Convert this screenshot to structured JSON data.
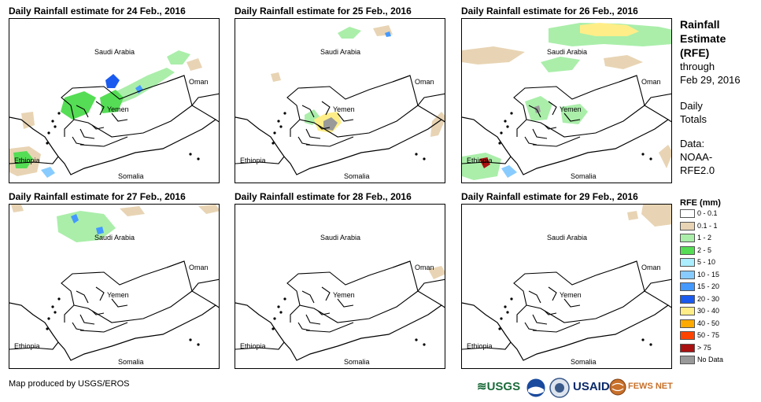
{
  "panels": [
    {
      "title": "Daily Rainfall estimate for 24 Feb., 2016",
      "rain": [
        {
          "c": 2,
          "pts": [
            [
              130,
              95
            ],
            [
              150,
              85
            ],
            [
              175,
              72
            ],
            [
              200,
              62
            ],
            [
              210,
              68
            ],
            [
              185,
              85
            ],
            [
              160,
              100
            ],
            [
              135,
              110
            ]
          ]
        },
        {
          "c": 2,
          "pts": [
            [
              200,
              48
            ],
            [
              215,
              40
            ],
            [
              230,
              45
            ],
            [
              220,
              58
            ],
            [
              205,
              58
            ]
          ]
        },
        {
          "c": 3,
          "pts": [
            [
              70,
              100
            ],
            [
              95,
              92
            ],
            [
              110,
              100
            ],
            [
              100,
              120
            ],
            [
              80,
              128
            ],
            [
              65,
              118
            ]
          ]
        },
        {
          "c": 3,
          "pts": [
            [
              115,
              100
            ],
            [
              135,
              90
            ],
            [
              145,
              100
            ],
            [
              138,
              118
            ],
            [
              118,
              120
            ]
          ]
        },
        {
          "c": 7,
          "pts": [
            [
              122,
              78
            ],
            [
              132,
              70
            ],
            [
              140,
              78
            ],
            [
              134,
              88
            ],
            [
              124,
              88
            ]
          ]
        },
        {
          "c": 6,
          "pts": [
            [
              160,
              88
            ],
            [
              166,
              84
            ],
            [
              170,
              90
            ],
            [
              164,
              95
            ]
          ]
        },
        {
          "c": 1,
          "pts": [
            [
              0,
              165
            ],
            [
              25,
              162
            ],
            [
              40,
              172
            ],
            [
              35,
              195
            ],
            [
              10,
              200
            ],
            [
              0,
              195
            ]
          ]
        },
        {
          "c": 3,
          "pts": [
            [
              5,
              170
            ],
            [
              22,
              168
            ],
            [
              30,
              178
            ],
            [
              22,
              190
            ],
            [
              8,
              190
            ]
          ]
        },
        {
          "c": 5,
          "pts": [
            [
              40,
              192
            ],
            [
              52,
              188
            ],
            [
              58,
              196
            ],
            [
              48,
              202
            ]
          ]
        },
        {
          "c": 1,
          "pts": [
            [
              225,
              55
            ],
            [
              240,
              50
            ],
            [
              245,
              62
            ],
            [
              230,
              66
            ]
          ]
        },
        {
          "c": 1,
          "pts": [
            [
              15,
              120
            ],
            [
              30,
              118
            ],
            [
              32,
              135
            ],
            [
              18,
              140
            ]
          ]
        }
      ]
    },
    {
      "title": "Daily Rainfall estimate for 25 Feb., 2016",
      "rain": [
        {
          "c": 2,
          "pts": [
            [
              130,
              18
            ],
            [
              145,
              10
            ],
            [
              160,
              15
            ],
            [
              150,
              25
            ],
            [
              135,
              25
            ]
          ]
        },
        {
          "c": 1,
          "pts": [
            [
              175,
              12
            ],
            [
              195,
              8
            ],
            [
              200,
              20
            ],
            [
              180,
              22
            ]
          ]
        },
        {
          "c": 6,
          "pts": [
            [
              190,
              18
            ],
            [
              196,
              16
            ],
            [
              198,
              22
            ],
            [
              192,
              23
            ]
          ]
        },
        {
          "c": 2,
          "pts": [
            [
              88,
              122
            ],
            [
              100,
              115
            ],
            [
              108,
              125
            ],
            [
              98,
              135
            ],
            [
              88,
              132
            ]
          ]
        },
        {
          "c": 8,
          "pts": [
            [
              100,
              128
            ],
            [
              115,
              120
            ],
            [
              130,
              118
            ],
            [
              135,
              132
            ],
            [
              122,
              145
            ],
            [
              105,
              142
            ]
          ]
        },
        {
          "c": 12,
          "pts": [
            [
              112,
              130
            ],
            [
              122,
              125
            ],
            [
              130,
              132
            ],
            [
              124,
              142
            ],
            [
              112,
              140
            ]
          ]
        },
        {
          "c": 1,
          "pts": [
            [
              250,
              130
            ],
            [
              262,
              118
            ],
            [
              268,
              125
            ],
            [
              258,
              148
            ],
            [
              248,
              150
            ]
          ]
        },
        {
          "c": 1,
          "pts": [
            [
              45,
              70
            ],
            [
              55,
              68
            ],
            [
              58,
              78
            ],
            [
              48,
              80
            ]
          ]
        }
      ]
    },
    {
      "title": "Daily Rainfall estimate for 26 Feb., 2016",
      "rain": [
        {
          "c": 2,
          "pts": [
            [
              110,
              12
            ],
            [
              150,
              5
            ],
            [
              200,
              6
            ],
            [
              250,
              10
            ],
            [
              268,
              14
            ],
            [
              268,
              32
            ],
            [
              230,
              35
            ],
            [
              180,
              32
            ],
            [
              140,
              35
            ],
            [
              110,
              30
            ]
          ]
        },
        {
          "c": 8,
          "pts": [
            [
              150,
              8
            ],
            [
              175,
              5
            ],
            [
              210,
              8
            ],
            [
              225,
              16
            ],
            [
              210,
              22
            ],
            [
              170,
              22
            ],
            [
              150,
              18
            ]
          ]
        },
        {
          "c": 2,
          "pts": [
            [
              100,
              55
            ],
            [
              125,
              48
            ],
            [
              150,
              52
            ],
            [
              140,
              65
            ],
            [
              110,
              68
            ]
          ]
        },
        {
          "c": 1,
          "pts": [
            [
              0,
              40
            ],
            [
              40,
              35
            ],
            [
              80,
              42
            ],
            [
              60,
              55
            ],
            [
              20,
              58
            ],
            [
              0,
              55
            ]
          ]
        },
        {
          "c": 1,
          "pts": [
            [
              180,
              50
            ],
            [
              210,
              46
            ],
            [
              230,
              55
            ],
            [
              205,
              64
            ],
            [
              182,
              60
            ]
          ]
        },
        {
          "c": 2,
          "pts": [
            [
              80,
              105
            ],
            [
              100,
              98
            ],
            [
              115,
              108
            ],
            [
              108,
              128
            ],
            [
              88,
              130
            ]
          ]
        },
        {
          "c": 12,
          "pts": [
            [
              92,
              112
            ],
            [
              98,
              110
            ],
            [
              100,
              118
            ],
            [
              94,
              120
            ]
          ]
        },
        {
          "c": 2,
          "pts": [
            [
              125,
              112
            ],
            [
              150,
              108
            ],
            [
              160,
              118
            ],
            [
              148,
              134
            ],
            [
              128,
              132
            ]
          ]
        },
        {
          "c": 2,
          "pts": [
            [
              0,
              175
            ],
            [
              30,
              170
            ],
            [
              50,
              178
            ],
            [
              45,
              200
            ],
            [
              15,
              205
            ],
            [
              0,
              200
            ]
          ]
        },
        {
          "c": 11,
          "pts": [
            [
              22,
              178
            ],
            [
              32,
              176
            ],
            [
              36,
              185
            ],
            [
              28,
              190
            ]
          ]
        },
        {
          "c": 5,
          "pts": [
            [
              50,
              190
            ],
            [
              60,
              186
            ],
            [
              70,
              195
            ],
            [
              58,
              202
            ]
          ]
        },
        {
          "c": 1,
          "pts": [
            [
              250,
              170
            ],
            [
              262,
              160
            ],
            [
              268,
              170
            ],
            [
              260,
              190
            ]
          ]
        }
      ]
    },
    {
      "title": "Daily Rainfall estimate for 27 Feb., 2016",
      "rain": [
        {
          "c": 2,
          "pts": [
            [
              60,
              15
            ],
            [
              90,
              8
            ],
            [
              120,
              12
            ],
            [
              135,
              30
            ],
            [
              115,
              45
            ],
            [
              85,
              48
            ],
            [
              62,
              35
            ]
          ]
        },
        {
          "c": 6,
          "pts": [
            [
              78,
              15
            ],
            [
              85,
              12
            ],
            [
              88,
              20
            ],
            [
              82,
              24
            ]
          ]
        },
        {
          "c": 6,
          "pts": [
            [
              110,
              30
            ],
            [
              118,
              28
            ],
            [
              120,
              36
            ],
            [
              112,
              38
            ]
          ]
        },
        {
          "c": 1,
          "pts": [
            [
              140,
              5
            ],
            [
              165,
              2
            ],
            [
              172,
              12
            ],
            [
              150,
              15
            ]
          ]
        },
        {
          "c": 1,
          "pts": [
            [
              240,
              2
            ],
            [
              262,
              0
            ],
            [
              268,
              8
            ],
            [
              250,
              12
            ]
          ]
        },
        {
          "c": 1,
          "pts": [
            [
              2,
              0
            ],
            [
              15,
              0
            ],
            [
              18,
              8
            ],
            [
              5,
              10
            ]
          ]
        }
      ]
    },
    {
      "title": "Daily Rainfall estimate for 28 Feb., 2016",
      "rain": [
        {
          "c": 1,
          "pts": [
            [
              245,
              82
            ],
            [
              262,
              78
            ],
            [
              268,
              88
            ],
            [
              252,
              95
            ]
          ]
        }
      ]
    },
    {
      "title": "Daily Rainfall estimate for 29 Feb., 2016",
      "rain": [
        {
          "c": 1,
          "pts": [
            [
              230,
              0
            ],
            [
              268,
              0
            ],
            [
              268,
              25
            ],
            [
              245,
              28
            ],
            [
              228,
              12
            ]
          ]
        },
        {
          "c": 1,
          "pts": [
            [
              210,
              10
            ],
            [
              222,
              8
            ],
            [
              224,
              18
            ],
            [
              212,
              20
            ]
          ]
        }
      ]
    }
  ],
  "map_labels": {
    "saudi": "Saudi Arabia",
    "oman": "Oman",
    "yemen": "Yemen",
    "ethiopia": "Ethiopia",
    "somalia": "Somalia"
  },
  "sidebar": {
    "title_line1": "Rainfall",
    "title_line2": "Estimate",
    "title_line3": "(RFE)",
    "through": "through",
    "date": "Feb 29, 2016",
    "daily": "Daily",
    "totals": "Totals",
    "data_label": "Data:",
    "source1": "NOAA-",
    "source2": "RFE2.0"
  },
  "legend": {
    "title": "RFE (mm)",
    "items": [
      {
        "label": "0 - 0.1",
        "color": "#ffffff"
      },
      {
        "label": "0.1 - 1",
        "color": "#e8d4b4"
      },
      {
        "label": "1 - 2",
        "color": "#aaeeaa"
      },
      {
        "label": "2 - 5",
        "color": "#55dd55"
      },
      {
        "label": "5 - 10",
        "color": "#aaeeff"
      },
      {
        "label": "10 - 15",
        "color": "#88ccff"
      },
      {
        "label": "15 - 20",
        "color": "#4499ff"
      },
      {
        "label": "20 - 30",
        "color": "#1a5aee"
      },
      {
        "label": "30 - 40",
        "color": "#ffee88"
      },
      {
        "label": "40 - 50",
        "color": "#ffaa00"
      },
      {
        "label": "50 - 75",
        "color": "#ff4400"
      },
      {
        "label": "> 75",
        "color": "#aa1111"
      },
      {
        "label": "No Data",
        "color": "#999999"
      }
    ]
  },
  "footer": "Map produced by USGS/EROS",
  "logos": {
    "usgs": "USGS",
    "usaid": "USAID",
    "fews": "FEWS NET"
  }
}
